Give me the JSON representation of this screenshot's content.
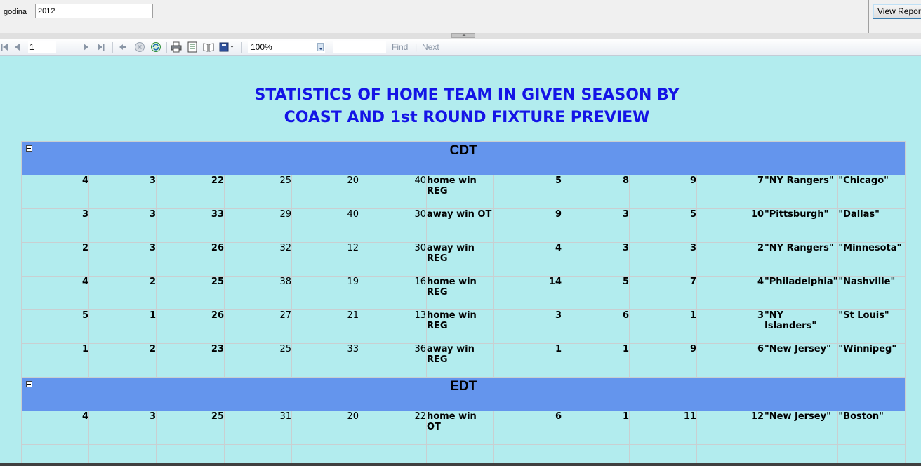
{
  "parameters": {
    "label": "godina",
    "value": "2012",
    "view_report_label": "View Report"
  },
  "toolbar": {
    "page_number": "1",
    "zoom": "100%",
    "find_value": "",
    "find_label": "Find",
    "separator": "|",
    "next_label": "Next",
    "icons": [
      "first-page-icon",
      "previous-page-icon",
      "next-page-icon",
      "last-page-icon",
      "back-icon",
      "stop-icon",
      "refresh-icon",
      "print-icon",
      "print-layout-icon",
      "page-setup-icon",
      "export-icon"
    ]
  },
  "report": {
    "title_line1": "STATISTICS OF HOME TEAM IN GIVEN SEASON BY",
    "title_line2": "COAST AND 1st ROUND FIXTURE PREVIEW",
    "colors": {
      "background": "#b2ecee",
      "group_header": "#6495ed",
      "title": "#1414e6"
    },
    "groups": [
      {
        "name": "CDT",
        "rows": [
          [
            "4",
            "3",
            "22",
            "25",
            "20",
            "40",
            "home win REG",
            "5",
            "8",
            "9",
            "7",
            "\"NY Rangers\"",
            "\"Chicago\""
          ],
          [
            "3",
            "3",
            "33",
            "29",
            "40",
            "30",
            "away win OT",
            "9",
            "3",
            "5",
            "10",
            "\"Pittsburgh\"",
            "\"Dallas\""
          ],
          [
            "2",
            "3",
            "26",
            "32",
            "12",
            "30",
            "away win REG",
            "4",
            "3",
            "3",
            "2",
            "\"NY Rangers\"",
            "\"Minnesota\""
          ],
          [
            "4",
            "2",
            "25",
            "38",
            "19",
            "16",
            "home win REG",
            "14",
            "5",
            "7",
            "4",
            "\"Philadelphia\"",
            "\"Nashville\""
          ],
          [
            "5",
            "1",
            "26",
            "27",
            "21",
            "13",
            "home win REG",
            "3",
            "6",
            "1",
            "3",
            "\"NY Islanders\"",
            "\"St Louis\""
          ],
          [
            "1",
            "2",
            "23",
            "25",
            "33",
            "36",
            "away win REG",
            "1",
            "1",
            "9",
            "6",
            "\"New Jersey\"",
            "\"Winnipeg\""
          ]
        ]
      },
      {
        "name": "EDT",
        "rows": [
          [
            "4",
            "3",
            "25",
            "31",
            "20",
            "22",
            "home win OT",
            "6",
            "1",
            "11",
            "12",
            "\"New Jersey\"",
            "\"Boston\""
          ],
          [
            "",
            "",
            "",
            "",
            "",
            "",
            "",
            "",
            "",
            "",
            "",
            "",
            ""
          ]
        ]
      }
    ]
  }
}
